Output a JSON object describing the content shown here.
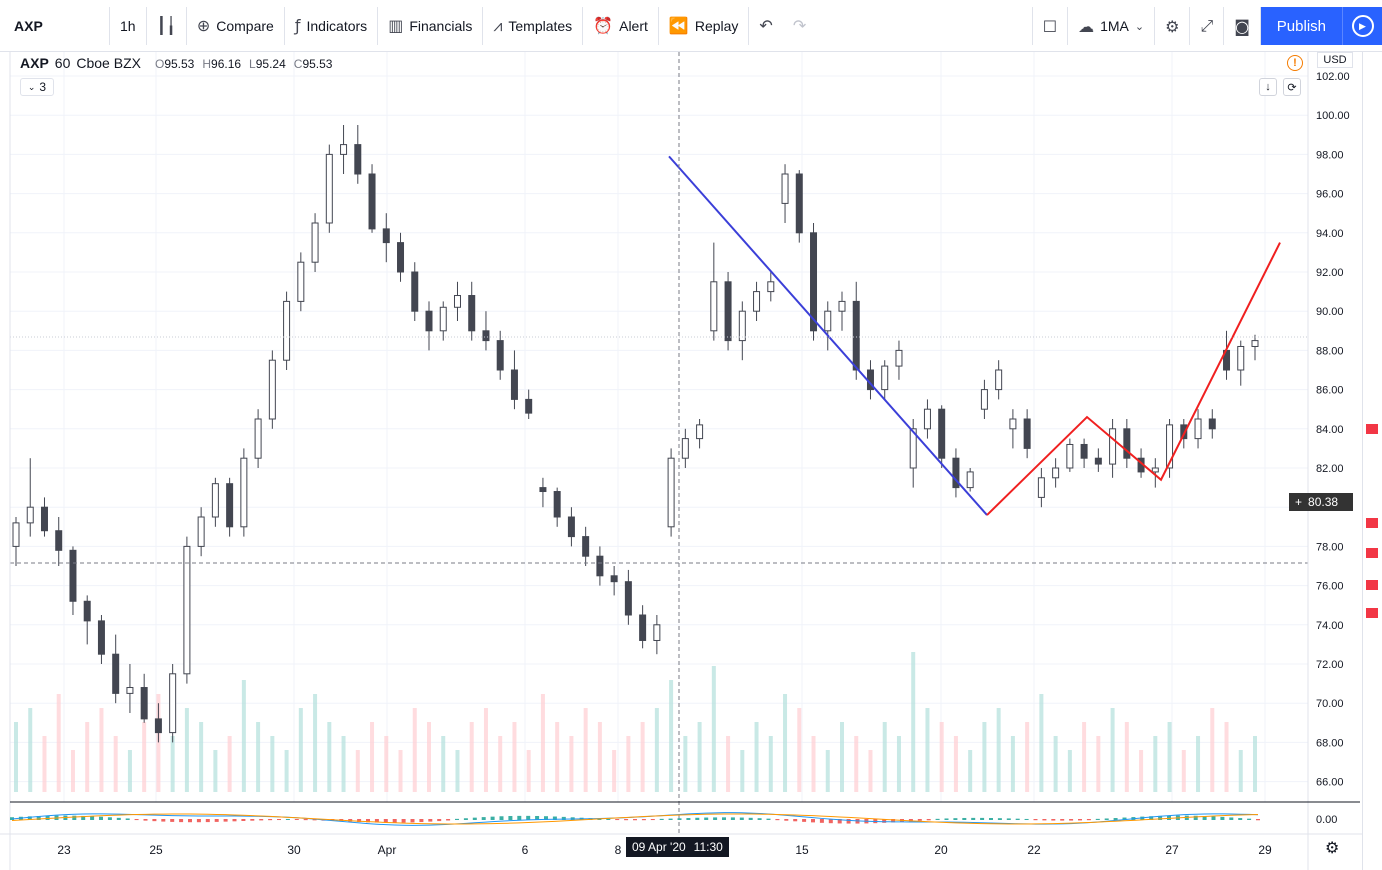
{
  "toolbar": {
    "symbol": "AXP",
    "interval": "1h",
    "compare": "Compare",
    "indicators": "Indicators",
    "financials": "Financials",
    "templates": "Templates",
    "alert": "Alert",
    "replay": "Replay",
    "ma_label": "1MA",
    "publish": "Publish"
  },
  "legend": {
    "symbol": "AXP",
    "interval": "60",
    "exchange": "Cboe BZX",
    "o_label": "O",
    "o": "95.53",
    "h_label": "H",
    "h": "96.16",
    "l_label": "L",
    "l": "95.24",
    "c_label": "C",
    "c": "95.53",
    "collapsed_count": "3"
  },
  "price_axis": {
    "currency": "USD",
    "current_price": "80.38",
    "ticks": [
      "102.00",
      "100.00",
      "98.00",
      "96.00",
      "94.00",
      "92.00",
      "90.00",
      "88.00",
      "86.00",
      "84.00",
      "82.00",
      "80.00",
      "78.00",
      "76.00",
      "74.00",
      "72.00",
      "70.00",
      "68.00",
      "66.00"
    ],
    "indicator_tick": "0.00"
  },
  "time_axis": {
    "ticks": [
      "23",
      "25",
      "30",
      "Apr",
      "6",
      "8",
      "15",
      "20",
      "22",
      "27",
      "29"
    ],
    "crosshair_date": "09 Apr '20",
    "crosshair_time": "11:30"
  },
  "colors": {
    "up": "#ffffff",
    "down": "#434651",
    "candle_border": "#434651",
    "volume_up": "#b2dfdb",
    "volume_down": "#ffcdd2",
    "trend_blue": "#3b3fd8",
    "trend_red": "#f02020",
    "accent": "#2962ff"
  },
  "chart_data": {
    "type": "candlestick",
    "ylim": [
      65,
      103
    ],
    "candles": [
      [
        78.0,
        79.5,
        77.0,
        79.2
      ],
      [
        79.2,
        82.5,
        78.5,
        80.0
      ],
      [
        80.0,
        80.5,
        78.5,
        78.8
      ],
      [
        78.8,
        79.5,
        77.0,
        77.8
      ],
      [
        77.8,
        78.0,
        74.5,
        75.2
      ],
      [
        75.2,
        75.5,
        73.0,
        74.2
      ],
      [
        74.2,
        74.5,
        72.0,
        72.5
      ],
      [
        72.5,
        73.5,
        70.0,
        70.5
      ],
      [
        70.5,
        72.0,
        69.5,
        70.8
      ],
      [
        70.8,
        71.5,
        69.0,
        69.2
      ],
      [
        69.2,
        70.0,
        68.0,
        68.5
      ],
      [
        68.5,
        72.0,
        68.0,
        71.5
      ],
      [
        71.5,
        78.5,
        71.0,
        78.0
      ],
      [
        78.0,
        80.0,
        77.5,
        79.5
      ],
      [
        79.5,
        81.5,
        79.0,
        81.2
      ],
      [
        81.2,
        81.5,
        78.5,
        79.0
      ],
      [
        79.0,
        83.0,
        78.5,
        82.5
      ],
      [
        82.5,
        85.0,
        82.0,
        84.5
      ],
      [
        84.5,
        88.0,
        84.0,
        87.5
      ],
      [
        87.5,
        91.0,
        87.0,
        90.5
      ],
      [
        90.5,
        93.0,
        90.0,
        92.5
      ],
      [
        92.5,
        95.0,
        92.0,
        94.5
      ],
      [
        94.5,
        98.5,
        94.0,
        98.0
      ],
      [
        98.0,
        99.5,
        97.0,
        98.5
      ],
      [
        98.5,
        99.5,
        96.5,
        97.0
      ],
      [
        97.0,
        97.5,
        94.0,
        94.2
      ],
      [
        94.2,
        95.0,
        92.5,
        93.5
      ],
      [
        93.5,
        94.0,
        91.5,
        92.0
      ],
      [
        92.0,
        92.5,
        89.5,
        90.0
      ],
      [
        90.0,
        90.5,
        88.0,
        89.0
      ],
      [
        89.0,
        90.5,
        88.5,
        90.2
      ],
      [
        90.2,
        91.5,
        89.5,
        90.8
      ],
      [
        90.8,
        91.5,
        88.5,
        89.0
      ],
      [
        89.0,
        90.0,
        88.0,
        88.5
      ],
      [
        88.5,
        89.0,
        86.5,
        87.0
      ],
      [
        87.0,
        88.0,
        85.0,
        85.5
      ],
      [
        85.5,
        86.0,
        84.5,
        84.8
      ],
      [
        81.0,
        81.5,
        80.0,
        80.8
      ],
      [
        80.8,
        81.0,
        79.0,
        79.5
      ],
      [
        79.5,
        80.0,
        78.0,
        78.5
      ],
      [
        78.5,
        79.0,
        77.0,
        77.5
      ],
      [
        77.5,
        78.0,
        76.0,
        76.5
      ],
      [
        76.5,
        77.0,
        75.5,
        76.2
      ],
      [
        76.2,
        76.8,
        74.0,
        74.5
      ],
      [
        74.5,
        75.0,
        72.8,
        73.2
      ],
      [
        73.2,
        74.5,
        72.5,
        74.0
      ],
      [
        79.0,
        83.0,
        78.5,
        82.5
      ],
      [
        82.5,
        84.0,
        82.0,
        83.5
      ],
      [
        83.5,
        84.5,
        83.0,
        84.2
      ],
      [
        89.0,
        93.5,
        88.5,
        91.5
      ],
      [
        91.5,
        92.0,
        88.0,
        88.5
      ],
      [
        88.5,
        90.5,
        87.5,
        90.0
      ],
      [
        90.0,
        91.5,
        89.5,
        91.0
      ],
      [
        91.0,
        92.0,
        90.5,
        91.5
      ],
      [
        95.5,
        97.5,
        94.5,
        97.0
      ],
      [
        97.0,
        97.2,
        93.5,
        94.0
      ],
      [
        94.0,
        94.5,
        88.5,
        89.0
      ],
      [
        89.0,
        90.5,
        88.0,
        90.0
      ],
      [
        90.0,
        91.0,
        89.0,
        90.5
      ],
      [
        90.5,
        91.5,
        86.5,
        87.0
      ],
      [
        87.0,
        87.5,
        85.5,
        86.0
      ],
      [
        86.0,
        87.5,
        85.5,
        87.2
      ],
      [
        87.2,
        88.5,
        86.5,
        88.0
      ],
      [
        82.0,
        84.5,
        81.0,
        84.0
      ],
      [
        84.0,
        85.5,
        83.5,
        85.0
      ],
      [
        85.0,
        85.2,
        82.0,
        82.5
      ],
      [
        82.5,
        83.0,
        80.5,
        81.0
      ],
      [
        81.0,
        82.0,
        80.8,
        81.8
      ],
      [
        85.0,
        86.5,
        84.5,
        86.0
      ],
      [
        86.0,
        87.5,
        85.5,
        87.0
      ],
      [
        84.0,
        85.0,
        83.0,
        84.5
      ],
      [
        84.5,
        85.0,
        82.5,
        83.0
      ],
      [
        80.5,
        82.0,
        80.0,
        81.5
      ],
      [
        81.5,
        82.5,
        81.0,
        82.0
      ],
      [
        82.0,
        83.5,
        81.8,
        83.2
      ],
      [
        83.2,
        83.5,
        82.0,
        82.5
      ],
      [
        82.5,
        83.0,
        81.8,
        82.2
      ],
      [
        82.2,
        84.5,
        81.5,
        84.0
      ],
      [
        84.0,
        84.5,
        82.0,
        82.5
      ],
      [
        82.5,
        83.0,
        81.5,
        81.8
      ],
      [
        81.8,
        82.5,
        81.0,
        82.0
      ],
      [
        82.0,
        84.5,
        81.5,
        84.2
      ],
      [
        84.2,
        84.5,
        83.0,
        83.5
      ],
      [
        83.5,
        85.0,
        83.0,
        84.5
      ],
      [
        84.5,
        85.0,
        83.5,
        84.0
      ],
      [
        88.0,
        89.0,
        86.5,
        87.0
      ],
      [
        87.0,
        88.5,
        86.2,
        88.2
      ],
      [
        88.2,
        88.8,
        87.5,
        88.5
      ]
    ],
    "volume": [
      0.5,
      0.6,
      0.4,
      0.7,
      0.3,
      0.5,
      0.6,
      0.4,
      0.3,
      0.5,
      0.7,
      0.4,
      0.6,
      0.5,
      0.3,
      0.4,
      0.8,
      0.5,
      0.4,
      0.3,
      0.6,
      0.7,
      0.5,
      0.4,
      0.3,
      0.5,
      0.4,
      0.3,
      0.6,
      0.5,
      0.4,
      0.3,
      0.5,
      0.6,
      0.4,
      0.5,
      0.3,
      0.7,
      0.5,
      0.4,
      0.6,
      0.5,
      0.3,
      0.4,
      0.5,
      0.6,
      0.8,
      0.4,
      0.5,
      0.9,
      0.4,
      0.3,
      0.5,
      0.4,
      0.7,
      0.6,
      0.4,
      0.3,
      0.5,
      0.4,
      0.3,
      0.5,
      0.4,
      1.0,
      0.6,
      0.5,
      0.4,
      0.3,
      0.5,
      0.6,
      0.4,
      0.5,
      0.7,
      0.4,
      0.3,
      0.5,
      0.4,
      0.6,
      0.5,
      0.3,
      0.4,
      0.5,
      0.3,
      0.4,
      0.6,
      0.5,
      0.3,
      0.4
    ],
    "trendlines": [
      {
        "color": "blue",
        "points": [
          [
            97.9
          ],
          [
            79.6
          ]
        ]
      },
      {
        "color": "red",
        "points": [
          [
            79.6
          ],
          [
            84.6
          ],
          [
            81.4
          ],
          [
            93.5
          ]
        ]
      }
    ]
  }
}
